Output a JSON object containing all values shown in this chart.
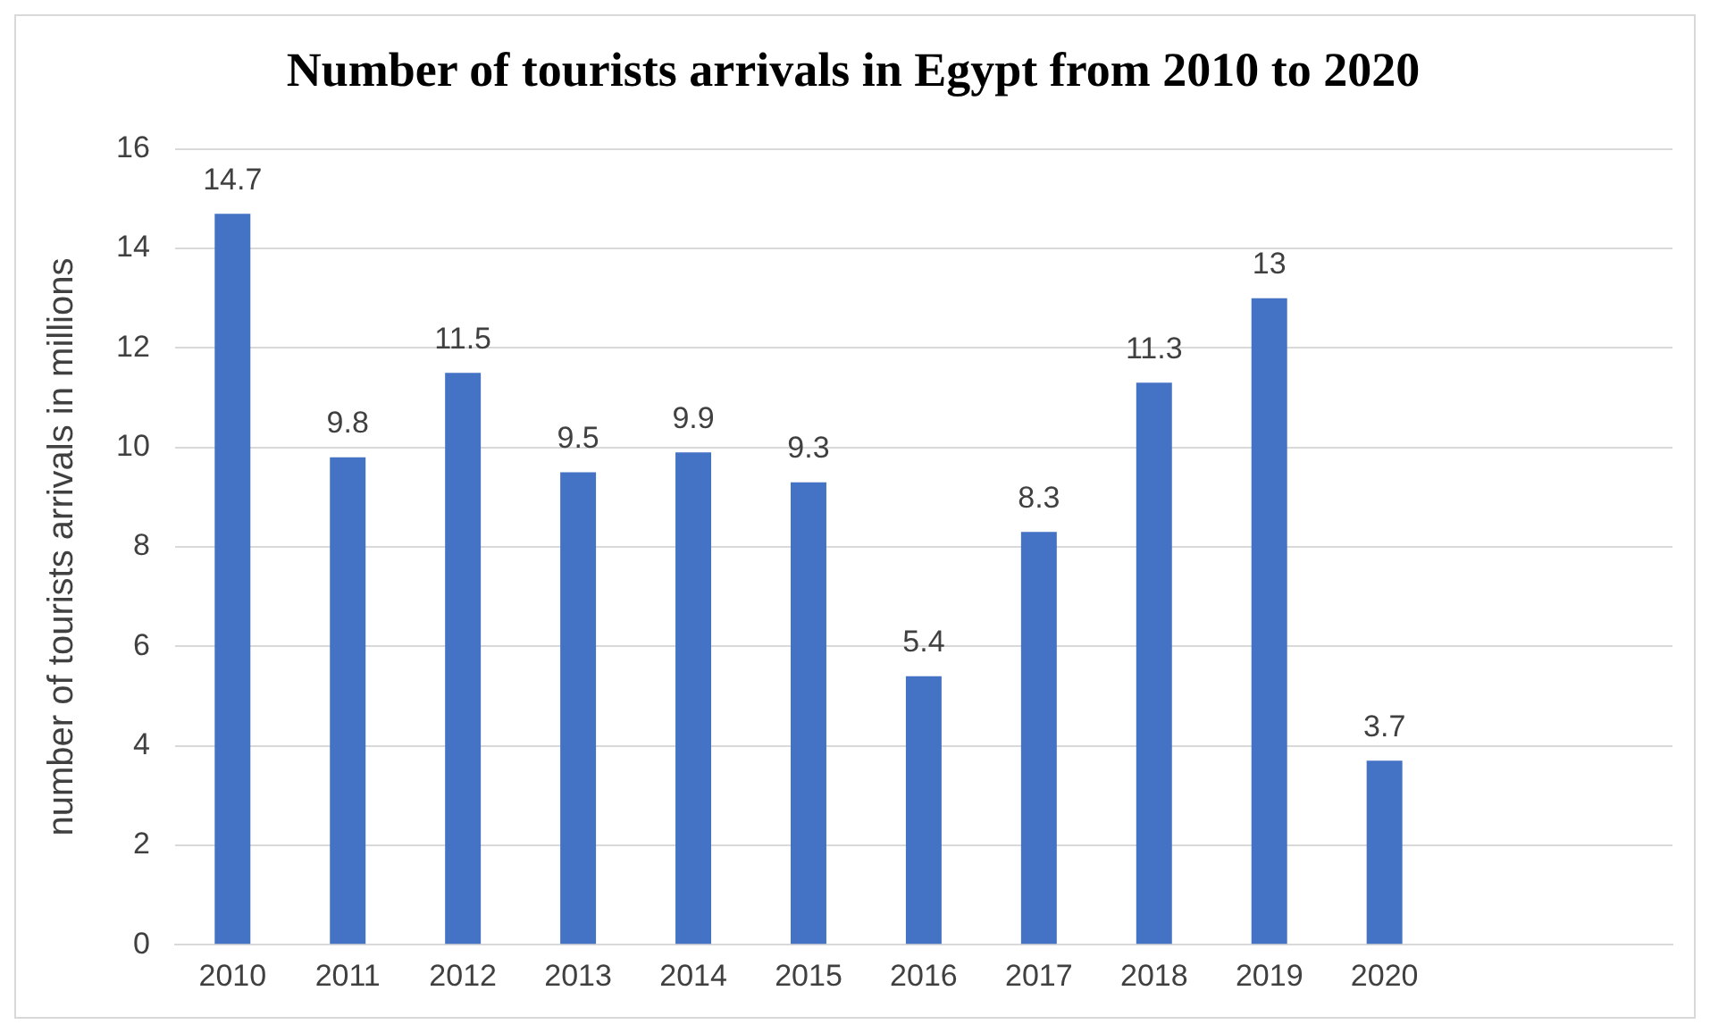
{
  "chart_data": {
    "type": "bar",
    "title": "Number of tourists arrivals in Egypt from 2010 to 2020",
    "ylabel": "number of tourists arrivals in millions",
    "categories": [
      "2010",
      "2011",
      "2012",
      "2013",
      "2014",
      "2015",
      "2016",
      "2017",
      "2018",
      "2019",
      "2020",
      null,
      null
    ],
    "values": [
      14.7,
      9.8,
      11.5,
      9.5,
      9.9,
      9.3,
      5.4,
      8.3,
      11.3,
      13,
      3.7,
      null,
      null
    ],
    "color": "#4472c4",
    "ylim": [
      0,
      16
    ],
    "yticks": [
      0,
      2,
      4,
      6,
      8,
      10,
      12,
      14,
      16
    ],
    "grid": "y",
    "data_labels": true
  }
}
